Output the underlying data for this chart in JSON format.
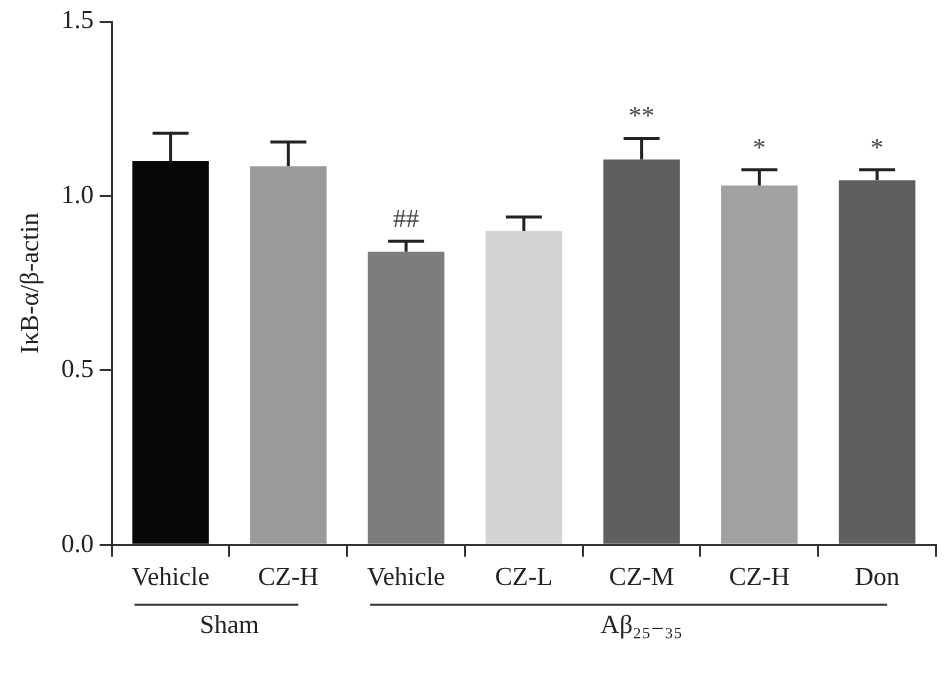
{
  "chart_data": {
    "type": "bar",
    "ylabel": "IκB-α/β-actin",
    "categories": [
      "Vehicle",
      "CZ-H",
      "Vehicle",
      "CZ-L",
      "CZ-M",
      "CZ-H",
      "Don"
    ],
    "values": [
      1.1,
      1.085,
      0.84,
      0.9,
      1.105,
      1.03,
      1.045
    ],
    "errors": [
      0.08,
      0.07,
      0.03,
      0.04,
      0.06,
      0.045,
      0.03
    ],
    "value_labels": [
      null,
      null,
      "##",
      null,
      "**",
      "*",
      "*"
    ],
    "colors": [
      "#050807",
      "#999a9c",
      "#7c7c7c",
      "#d3d3d3",
      "#5f5f5f",
      "#a0a1a3",
      "#5f5f5f"
    ],
    "ylim": [
      0,
      1.5
    ],
    "yticks": [
      {
        "value": 0,
        "label": "0.0"
      },
      {
        "value": 0.5,
        "label": "0.5"
      },
      {
        "value": 1,
        "label": "1.0"
      },
      {
        "value": 1.5,
        "label": "1.5"
      }
    ],
    "grid": false,
    "legend": false,
    "annotations": [
      "Sham",
      "Aβ₂₅₋₃₅"
    ]
  }
}
